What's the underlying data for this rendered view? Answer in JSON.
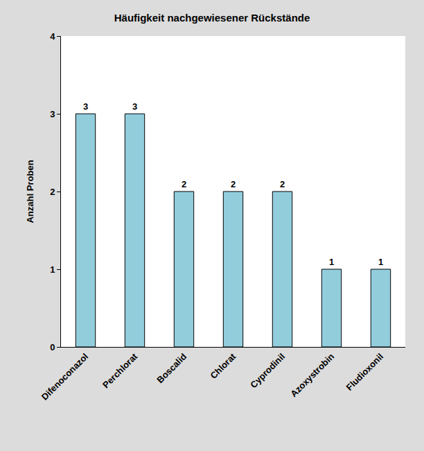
{
  "chart_data": {
    "type": "bar",
    "title": "Häufigkeit nachgewiesener Rückstände",
    "y_label": "Anzahl Proben",
    "categories": [
      "Difenoconazol",
      "Perchlorat",
      "Boscalid",
      "Chlorat",
      "Cyprodinil",
      "Azoxystrobin",
      "Fludioxonil"
    ],
    "values": [
      3,
      3,
      2,
      2,
      2,
      1,
      1
    ],
    "color": "#92cddc",
    "ylim": [
      0,
      4
    ],
    "yticks": [
      0,
      1,
      2,
      3,
      4
    ],
    "grid": false,
    "data_labels": true
  }
}
